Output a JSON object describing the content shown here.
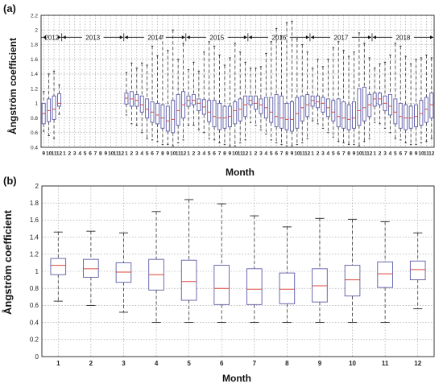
{
  "chart_data": [
    {
      "type": "box",
      "panel_label": "(a)",
      "xlabel": "Month",
      "ylabel": "Ångström coefficient",
      "ylim": [
        0.4,
        2.2
      ],
      "yticks": [
        "0.4",
        "0.6",
        "0.8",
        "1",
        "1.2",
        "1.4",
        "1.6",
        "1.8",
        "2",
        "2.2"
      ],
      "grid": true,
      "year_labels": [
        "2012",
        "2013",
        "2014",
        "2015",
        "2016",
        "2017",
        "2018"
      ],
      "year_spans": [
        [
          0,
          3
        ],
        [
          4,
          15
        ],
        [
          16,
          27
        ],
        [
          28,
          39
        ],
        [
          40,
          51
        ],
        [
          52,
          63
        ],
        [
          64,
          75
        ]
      ],
      "categories": [
        "9",
        "10",
        "11",
        "12",
        "1",
        "2",
        "3",
        "4",
        "5",
        "6",
        "7",
        "8",
        "9",
        "10",
        "11",
        "12",
        "1",
        "2",
        "3",
        "4",
        "5",
        "6",
        "7",
        "8",
        "9",
        "10",
        "11",
        "12",
        "1",
        "2",
        "3",
        "4",
        "5",
        "6",
        "7",
        "8",
        "9",
        "10",
        "11",
        "12",
        "1",
        "2",
        "3",
        "4",
        "5",
        "6",
        "7",
        "8",
        "9",
        "10",
        "11",
        "12",
        "1",
        "2",
        "3",
        "4",
        "5",
        "6",
        "7",
        "8",
        "9",
        "10",
        "11",
        "12",
        "1",
        "2",
        "3",
        "4",
        "5",
        "6",
        "7",
        "8",
        "9",
        "10",
        "11",
        "12"
      ],
      "boxes": [
        [
          0.62,
          0.72,
          0.86,
          1.0,
          1.16
        ],
        [
          0.56,
          0.75,
          0.9,
          1.06,
          1.4
        ],
        [
          0.52,
          0.78,
          0.92,
          1.1,
          1.44
        ],
        [
          0.85,
          0.96,
          1.0,
          1.13,
          1.25
        ],
        null,
        null,
        null,
        null,
        null,
        null,
        null,
        null,
        null,
        null,
        null,
        null,
        [
          0.84,
          0.99,
          1.07,
          1.14,
          1.42
        ],
        [
          0.72,
          0.96,
          1.06,
          1.16,
          1.55
        ],
        [
          0.7,
          0.96,
          1.04,
          1.12,
          1.48
        ],
        [
          0.6,
          0.88,
          0.98,
          1.1,
          1.55
        ],
        [
          0.52,
          0.8,
          0.92,
          1.06,
          1.52
        ],
        [
          0.5,
          0.74,
          0.88,
          1.02,
          1.78
        ],
        [
          0.48,
          0.72,
          0.84,
          1.0,
          1.65
        ],
        [
          0.44,
          0.66,
          0.8,
          0.98,
          1.92
        ],
        [
          0.44,
          0.62,
          0.76,
          0.96,
          1.72
        ],
        [
          0.42,
          0.6,
          0.78,
          1.04,
          2.0
        ],
        [
          0.46,
          0.7,
          0.9,
          1.12,
          1.6
        ],
        [
          0.5,
          0.8,
          0.98,
          1.16,
          1.82
        ],
        [
          0.7,
          0.96,
          1.04,
          1.1,
          1.46
        ],
        [
          0.7,
          0.98,
          1.04,
          1.12,
          1.56
        ],
        [
          0.64,
          0.9,
          1.0,
          1.06,
          1.44
        ],
        [
          0.6,
          0.85,
          0.95,
          1.05,
          1.7
        ],
        [
          0.52,
          0.75,
          0.88,
          1.04,
          1.84
        ],
        [
          0.5,
          0.68,
          0.82,
          1.04,
          1.78
        ],
        [
          0.46,
          0.64,
          0.8,
          1.0,
          1.66
        ],
        [
          0.44,
          0.66,
          0.8,
          0.96,
          1.52
        ],
        [
          0.42,
          0.68,
          0.82,
          0.96,
          1.62
        ],
        [
          0.42,
          0.72,
          0.9,
          1.02,
          1.82
        ],
        [
          0.46,
          0.76,
          0.92,
          1.06,
          1.7
        ],
        [
          0.5,
          0.82,
          0.98,
          1.1,
          1.56
        ],
        [
          0.74,
          0.98,
          1.04,
          1.1,
          1.48
        ],
        [
          0.7,
          0.92,
          1.0,
          1.1,
          1.48
        ],
        [
          0.64,
          0.86,
          0.98,
          1.06,
          1.5
        ],
        [
          0.58,
          0.8,
          0.94,
          1.08,
          1.68
        ],
        [
          0.5,
          0.74,
          0.88,
          1.08,
          1.84
        ],
        [
          0.46,
          0.68,
          0.82,
          1.12,
          2.02
        ],
        [
          0.44,
          0.66,
          0.8,
          1.1,
          1.92
        ],
        [
          0.42,
          0.64,
          0.78,
          1.0,
          2.1
        ],
        [
          0.42,
          0.62,
          0.78,
          1.02,
          2.12
        ],
        [
          0.44,
          0.66,
          0.86,
          1.08,
          1.88
        ],
        [
          0.46,
          0.76,
          0.94,
          1.1,
          1.8
        ],
        [
          0.52,
          0.82,
          0.98,
          1.12,
          1.7
        ],
        [
          0.76,
          0.96,
          1.04,
          1.1,
          1.48
        ],
        [
          0.72,
          0.94,
          1.02,
          1.1,
          1.6
        ],
        [
          0.66,
          0.88,
          1.0,
          1.08,
          1.5
        ],
        [
          0.6,
          0.82,
          0.94,
          1.06,
          1.6
        ],
        [
          0.54,
          0.76,
          0.88,
          1.04,
          1.76
        ],
        [
          0.48,
          0.68,
          0.82,
          1.06,
          1.84
        ],
        [
          0.46,
          0.66,
          0.8,
          1.02,
          1.72
        ],
        [
          0.44,
          0.64,
          0.78,
          0.98,
          1.64
        ],
        [
          0.44,
          0.66,
          0.8,
          1.02,
          1.7
        ],
        [
          0.42,
          0.7,
          0.9,
          1.2,
          1.96
        ],
        [
          0.48,
          0.76,
          0.94,
          1.22,
          1.82
        ],
        [
          0.52,
          0.82,
          0.98,
          1.12,
          1.62
        ],
        [
          0.74,
          0.96,
          1.06,
          1.14,
          1.48
        ],
        [
          0.72,
          0.98,
          1.06,
          1.14,
          1.54
        ],
        [
          0.66,
          0.9,
          1.0,
          1.1,
          1.56
        ],
        [
          0.6,
          0.84,
          0.96,
          1.12,
          1.66
        ],
        [
          0.52,
          0.72,
          0.88,
          1.06,
          1.82
        ],
        [
          0.5,
          0.66,
          0.82,
          1.0,
          1.78
        ],
        [
          0.46,
          0.64,
          0.8,
          0.98,
          1.64
        ],
        [
          0.44,
          0.66,
          0.8,
          0.96,
          1.54
        ],
        [
          0.44,
          0.68,
          0.82,
          0.98,
          1.6
        ],
        [
          0.46,
          0.7,
          0.86,
          1.04,
          1.62
        ],
        [
          0.48,
          0.74,
          0.92,
          1.08,
          1.66
        ],
        [
          0.52,
          0.8,
          0.98,
          1.14,
          1.62
        ]
      ]
    },
    {
      "type": "box",
      "panel_label": "(b)",
      "xlabel": "Month",
      "ylabel": "Ångström coefficient",
      "ylim": [
        0,
        2
      ],
      "yticks": [
        "0",
        "0.2",
        "0.4",
        "0.6",
        "0.8",
        "1",
        "1.2",
        "1.4",
        "1.6",
        "1.8",
        "2"
      ],
      "grid": true,
      "categories": [
        "1",
        "2",
        "3",
        "4",
        "5",
        "6",
        "7",
        "8",
        "9",
        "10",
        "11",
        "12"
      ],
      "boxes": [
        [
          0.65,
          0.96,
          1.07,
          1.15,
          1.46
        ],
        [
          0.6,
          0.93,
          1.03,
          1.14,
          1.47
        ],
        [
          0.52,
          0.87,
          0.99,
          1.1,
          1.45
        ],
        [
          0.4,
          0.78,
          0.96,
          1.14,
          1.7
        ],
        [
          0.4,
          0.66,
          0.88,
          1.13,
          1.84
        ],
        [
          0.4,
          0.61,
          0.8,
          1.07,
          1.79
        ],
        [
          0.4,
          0.61,
          0.79,
          1.03,
          1.65
        ],
        [
          0.4,
          0.62,
          0.79,
          0.98,
          1.52
        ],
        [
          0.4,
          0.64,
          0.83,
          1.03,
          1.62
        ],
        [
          0.4,
          0.71,
          0.9,
          1.07,
          1.61
        ],
        [
          0.4,
          0.81,
          0.97,
          1.11,
          1.58
        ],
        [
          0.56,
          0.9,
          1.02,
          1.12,
          1.45
        ]
      ]
    }
  ]
}
